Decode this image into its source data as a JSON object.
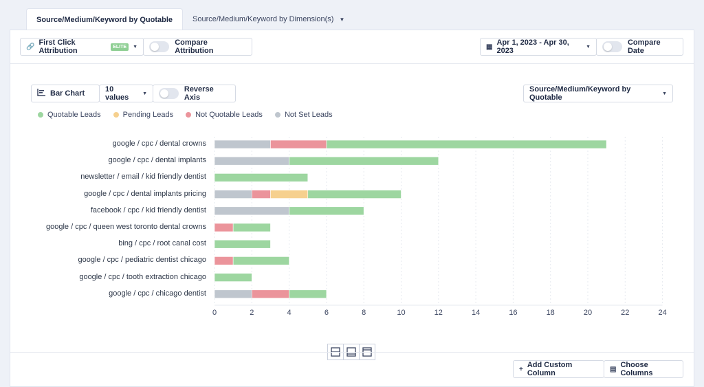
{
  "tabs": [
    {
      "label": "Source/Medium/Keyword by Quotable"
    },
    {
      "label": "Source/Medium/Keyword by Dimension(s)"
    }
  ],
  "toolbar": {
    "attribution_label": "First Click Attribution",
    "attribution_badge": "ELITE",
    "compare_attribution_label": "Compare Attribution",
    "date_range": "Apr 1, 2023 - Apr 30, 2023",
    "compare_date_label": "Compare Date"
  },
  "chart_controls": {
    "chart_type": "Bar Chart",
    "values_count": "10 values",
    "reverse_axis_label": "Reverse Axis",
    "dimension_select": "Source/Medium/Keyword by Quotable"
  },
  "footer": {
    "add_custom_column": "Add Custom Column",
    "choose_columns": "Choose Columns"
  },
  "colors": {
    "quotable": "#9dd6a0",
    "pending": "#f6d08e",
    "not_quotable": "#eb949b",
    "not_set": "#bfc6ce"
  },
  "chart_data": {
    "type": "bar",
    "orientation": "horizontal",
    "stacked": true,
    "title": "",
    "xlabel": "",
    "ylabel": "",
    "xlim": [
      0,
      24
    ],
    "xticks": [
      0,
      2,
      4,
      6,
      8,
      10,
      12,
      14,
      16,
      18,
      20,
      22,
      24
    ],
    "grid": true,
    "legend_position": "top-left",
    "categories": [
      "google / cpc / dental crowns",
      "google / cpc / dental implants",
      "newsletter / email / kid friendly dentist",
      "google / cpc / dental implants pricing",
      "facebook / cpc / kid friendly dentist",
      "google / cpc / queen west toronto dental crowns",
      "bing / cpc / root canal cost",
      "google / cpc / pediatric dentist chicago",
      "google / cpc / tooth extraction chicago",
      "google / cpc / chicago dentist"
    ],
    "series": [
      {
        "name": "Not Set Leads",
        "key": "not_set",
        "values": [
          3,
          4,
          0,
          2,
          4,
          0,
          0,
          0,
          0,
          2
        ]
      },
      {
        "name": "Not Quotable Leads",
        "key": "not_quotable",
        "values": [
          3,
          0,
          0,
          1,
          0,
          1,
          0,
          1,
          0,
          2
        ]
      },
      {
        "name": "Pending Leads",
        "key": "pending",
        "values": [
          0,
          0,
          0,
          2,
          0,
          0,
          0,
          0,
          0,
          0
        ]
      },
      {
        "name": "Quotable Leads",
        "key": "quotable",
        "values": [
          15,
          8,
          5,
          5,
          4,
          2,
          3,
          3,
          2,
          2
        ]
      }
    ],
    "legend": [
      "Quotable Leads",
      "Pending Leads",
      "Not Quotable Leads",
      "Not Set Leads"
    ]
  }
}
